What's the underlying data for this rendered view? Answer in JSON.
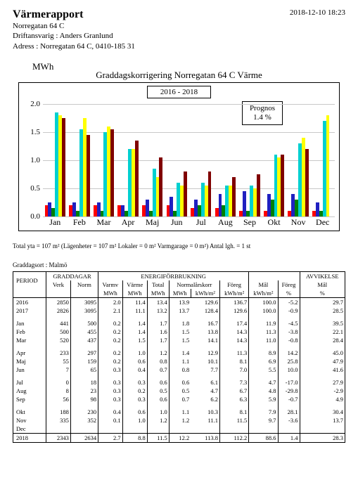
{
  "header": {
    "title": "Värmerapport",
    "timestamp": "2018-12-10 18:23",
    "line1": "Norregatan 64 C",
    "line2": "Driftansvarig : Anders Granlund",
    "line3": "Adress : Norregatan 64 C, 0410-185 31"
  },
  "chart": {
    "unit_label": "MWh",
    "title": "Graddagskorrigering Norregatan 64 C Värme",
    "year_range": "2016 - 2018",
    "prognos_label": "Prognos",
    "prognos_value": "1.4 %",
    "y_max": 2.0,
    "y_ticks": [
      0.0,
      0.5,
      1.0,
      1.5,
      2.0
    ],
    "y_tick_labels": [
      "0.0",
      "0.5",
      "1.0",
      "1.5",
      "2.0"
    ],
    "categories": [
      "Jan",
      "Feb",
      "Mar",
      "Apr",
      "Maj",
      "Jun",
      "Jul",
      "Aug",
      "Sep",
      "Okt",
      "Nov",
      "Dec"
    ],
    "series_colors": [
      "#ff0000",
      "#2020c0",
      "#008000",
      "#00d0d0",
      "#ffff00",
      "#800000"
    ],
    "bars": [
      [
        0.2,
        0.25,
        0.15,
        1.85,
        1.8,
        1.75
      ],
      [
        0.2,
        0.25,
        0.1,
        1.55,
        1.75,
        1.45
      ],
      [
        0.2,
        0.25,
        0.1,
        1.5,
        1.6,
        1.55
      ],
      [
        0.2,
        0.2,
        0.1,
        1.2,
        1.2,
        1.35
      ],
      [
        0.2,
        0.3,
        0.1,
        0.85,
        0.7,
        1.05
      ],
      [
        0.2,
        0.35,
        0.1,
        0.6,
        0.55,
        0.8
      ],
      [
        0.15,
        0.3,
        0.2,
        0.6,
        0.55,
        0.8
      ],
      [
        0.15,
        0.4,
        0.2,
        0.55,
        0.55,
        0.7
      ],
      [
        0.1,
        0.45,
        0.1,
        0.55,
        0.5,
        0.75
      ],
      [
        0.1,
        0.4,
        0.3,
        1.1,
        1.05,
        1.1
      ],
      [
        0.1,
        0.4,
        0.3,
        1.3,
        1.4,
        1.2
      ],
      [
        0.1,
        0.25,
        0.1,
        1.7,
        1.8,
        0.0
      ]
    ]
  },
  "info": {
    "line1": "Total yta = 107 m²   (Lägenheter = 107 m²   Lokaler = 0 m²   Varmgarage = 0 m²)   Antal lgh. = 1 st",
    "line2": "Graddagsort : Malmö"
  },
  "table": {
    "head": {
      "period": "PERIOD",
      "graddagar": "GRADDAGAR",
      "verk": "Verk",
      "norm": "Norm",
      "energi": "ENERGIFÖRBRUKNING",
      "varmv": "Varmv",
      "varmv_u": "MWh",
      "varme": "Värme",
      "varme_u": "MWh",
      "total": "Total",
      "total_u": "MWh",
      "normalk": "Normalårskorr",
      "normalk_u": "MWh",
      "normalk_u2": "kWh/m²",
      "foreg": "Föreg",
      "foreg_u": "kWh/m²",
      "mal": "Mål",
      "mal_u": "kWh/m²",
      "avvik": "AVVIKELSE",
      "av_foreg": "Föreg",
      "av_foreg_u": "%",
      "av_mal": "Mål",
      "av_mal_u": "%"
    },
    "rows_year": [
      [
        "2016",
        "2850",
        "3095",
        "2.0",
        "11.4",
        "13.4",
        "13.9",
        "129.6",
        "136.7",
        "100.0",
        "-5.2",
        "29.7"
      ],
      [
        "2017",
        "2826",
        "3095",
        "2.1",
        "11.1",
        "13.2",
        "13.7",
        "128.4",
        "129.6",
        "100.0",
        "-0.9",
        "28.5"
      ]
    ],
    "rows_months": [
      [
        "Jan",
        "441",
        "500",
        "0.2",
        "1.4",
        "1.7",
        "1.8",
        "16.7",
        "17.4",
        "11.9",
        "-4.5",
        "39.5"
      ],
      [
        "Feb",
        "500",
        "455",
        "0.2",
        "1.4",
        "1.6",
        "1.5",
        "13.8",
        "14.3",
        "11.3",
        "-3.8",
        "22.1"
      ],
      [
        "Mar",
        "520",
        "437",
        "0.2",
        "1.5",
        "1.7",
        "1.5",
        "14.1",
        "14.3",
        "11.0",
        "-0.8",
        "28.4"
      ]
    ],
    "rows_months2": [
      [
        "Apr",
        "233",
        "297",
        "0.2",
        "1.0",
        "1.2",
        "1.4",
        "12.9",
        "11.3",
        "8.9",
        "14.2",
        "45.0"
      ],
      [
        "Maj",
        "55",
        "159",
        "0.2",
        "0.6",
        "0.8",
        "1.1",
        "10.1",
        "8.1",
        "6.9",
        "25.8",
        "47.9"
      ],
      [
        "Jun",
        "7",
        "65",
        "0.3",
        "0.4",
        "0.7",
        "0.8",
        "7.7",
        "7.0",
        "5.5",
        "10.0",
        "41.6"
      ]
    ],
    "rows_months3": [
      [
        "Jul",
        "0",
        "18",
        "0.3",
        "0.3",
        "0.6",
        "0.6",
        "6.1",
        "7.3",
        "4.7",
        "-17.0",
        "27.9"
      ],
      [
        "Aug",
        "8",
        "23",
        "0.3",
        "0.2",
        "0.5",
        "0.5",
        "4.7",
        "6.7",
        "4.8",
        "-29.8",
        "-2.9"
      ],
      [
        "Sep",
        "56",
        "98",
        "0.3",
        "0.3",
        "0.6",
        "0.7",
        "6.2",
        "6.3",
        "5.9",
        "-0.7",
        "4.9"
      ]
    ],
    "rows_months4": [
      [
        "Okt",
        "188",
        "230",
        "0.4",
        "0.6",
        "1.0",
        "1.1",
        "10.3",
        "8.1",
        "7.9",
        "28.1",
        "30.4"
      ],
      [
        "Nov",
        "335",
        "352",
        "0.1",
        "1.0",
        "1.2",
        "1.2",
        "11.1",
        "11.5",
        "9.7",
        "-3.6",
        "13.7"
      ],
      [
        "Dec",
        "",
        "",
        "",
        "",
        "",
        "",
        "",
        "",
        "",
        "",
        ""
      ]
    ],
    "row_total": [
      "2018",
      "2343",
      "2634",
      "2.7",
      "8.8",
      "11.5",
      "12.2",
      "113.8",
      "112.2",
      "88.6",
      "1.4",
      "28.3"
    ]
  }
}
